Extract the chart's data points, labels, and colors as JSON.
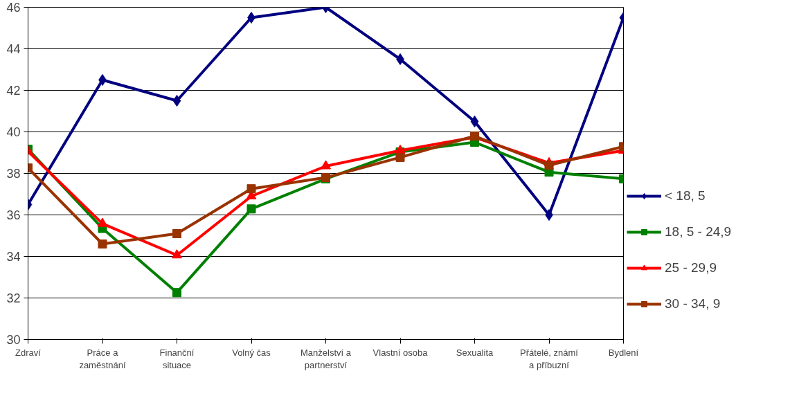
{
  "chart_data": {
    "type": "line",
    "categories": [
      "Zdraví",
      "Práce a zaměstnání",
      "Finanční situace",
      "Volný čas",
      "Manželství a partnerství",
      "Vlastní osoba",
      "Sexualita",
      "Přátelé, známí a příbuzní",
      "Bydlení"
    ],
    "ylim": [
      30,
      46
    ],
    "yticks": [
      30,
      32,
      34,
      36,
      38,
      40,
      42,
      44,
      46
    ],
    "grid": "y",
    "legend": "right",
    "series": [
      {
        "name": "< 18, 5",
        "color": "#000080",
        "marker": "diamond",
        "values": [
          36.5,
          42.5,
          41.5,
          45.5,
          46,
          43.5,
          40.5,
          36,
          45.5
        ]
      },
      {
        "name": "18, 5 - 24,9",
        "color": "#008000",
        "marker": "square",
        "values": [
          39.16,
          35.35,
          32.26,
          36.29,
          37.74,
          39.03,
          39.5,
          38.06,
          37.74
        ]
      },
      {
        "name": "25 - 29,9",
        "color": "#ff0000",
        "marker": "triangle",
        "values": [
          39.06,
          35.58,
          34.06,
          36.9,
          38.35,
          39.1,
          39.74,
          38.5,
          39.1
        ]
      },
      {
        "name": "30 - 34, 9",
        "color": "#993300",
        "marker": "square",
        "values": [
          38.26,
          34.6,
          35.1,
          37.26,
          37.8,
          38.77,
          39.8,
          38.39,
          39.29
        ]
      }
    ]
  }
}
